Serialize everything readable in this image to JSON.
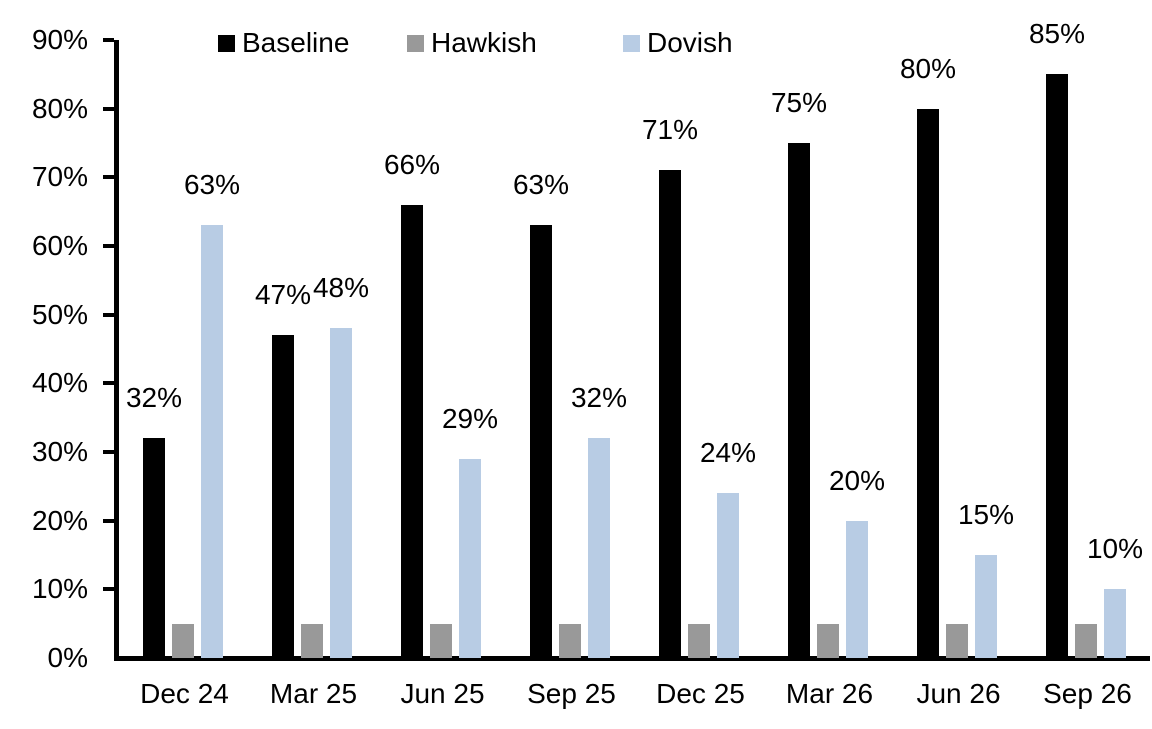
{
  "chart_data": {
    "type": "bar",
    "title": "",
    "xlabel": "",
    "ylabel": "",
    "categories": [
      "Dec 24",
      "Mar 25",
      "Jun 25",
      "Sep 25",
      "Dec 25",
      "Mar 26",
      "Jun 26",
      "Sep 26"
    ],
    "series": [
      {
        "name": "Baseline",
        "color": "#000000",
        "values": [
          32,
          47,
          66,
          63,
          71,
          75,
          80,
          85
        ],
        "show_labels": true
      },
      {
        "name": "Hawkish",
        "color": "#999999",
        "values": [
          5,
          5,
          5,
          5,
          5,
          5,
          5,
          5
        ],
        "show_labels": false
      },
      {
        "name": "Dovish",
        "color": "#b8cce4",
        "values": [
          63,
          48,
          29,
          32,
          24,
          20,
          15,
          10
        ],
        "show_labels": true
      }
    ],
    "label_format": "{v}%",
    "ylim": [
      0,
      90
    ],
    "ytick_step": 10,
    "ytick_labels": [
      "0%",
      "10%",
      "20%",
      "30%",
      "40%",
      "50%",
      "60%",
      "70%",
      "80%",
      "90%"
    ],
    "legend_position": "top",
    "grid": false,
    "axis_color": "#000000",
    "background_color": "#ffffff"
  }
}
